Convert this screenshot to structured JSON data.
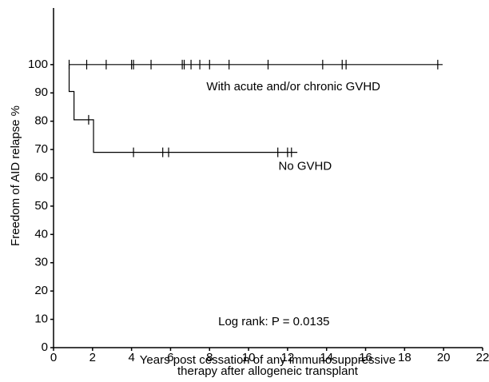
{
  "chart_data": {
    "type": "step",
    "x_label": [
      "Years post cessation of any immunosuppressive",
      "therapy after allogeneic transplant"
    ],
    "y_label": "Freedom of AID relapse %",
    "xlim": [
      0,
      22
    ],
    "xticks": [
      0,
      2,
      4,
      6,
      8,
      10,
      12,
      14,
      16,
      18,
      20,
      22
    ],
    "ylim": [
      0,
      120
    ],
    "yticks": [
      0,
      10,
      20,
      30,
      40,
      50,
      60,
      70,
      80,
      90,
      100
    ],
    "color": "#000000",
    "series": [
      {
        "name": "With acute and/or chronic GVHD",
        "x": [
          0.8,
          19.95
        ],
        "values": [
          100,
          100
        ],
        "censor_x": [
          0.8,
          1.7,
          2.7,
          4.0,
          4.1,
          5.0,
          6.6,
          6.7,
          7.05,
          7.5,
          8.0,
          9.0,
          11.0,
          13.8,
          14.8,
          15.0,
          19.7
        ],
        "censor_values": [
          100,
          100,
          100,
          100,
          100,
          100,
          100,
          100,
          100,
          100,
          100,
          100,
          100,
          100,
          100,
          100,
          100
        ],
        "label_at": [
          12.3,
          92
        ]
      },
      {
        "name": "No GVHD",
        "x": [
          0.8,
          0.8,
          1.05,
          2.05,
          12.5
        ],
        "values": [
          100,
          90.5,
          80.5,
          69,
          69
        ],
        "censor_x": [
          1.8,
          4.1,
          5.6,
          5.9,
          11.5,
          12.0,
          12.2
        ],
        "censor_values": [
          80.5,
          69,
          69,
          69,
          69,
          69,
          69
        ],
        "label_at": [
          12.9,
          64
        ]
      }
    ],
    "annotation": "Log rank: P = 0.0135",
    "annotation_at": [
      11.3,
      9
    ]
  }
}
